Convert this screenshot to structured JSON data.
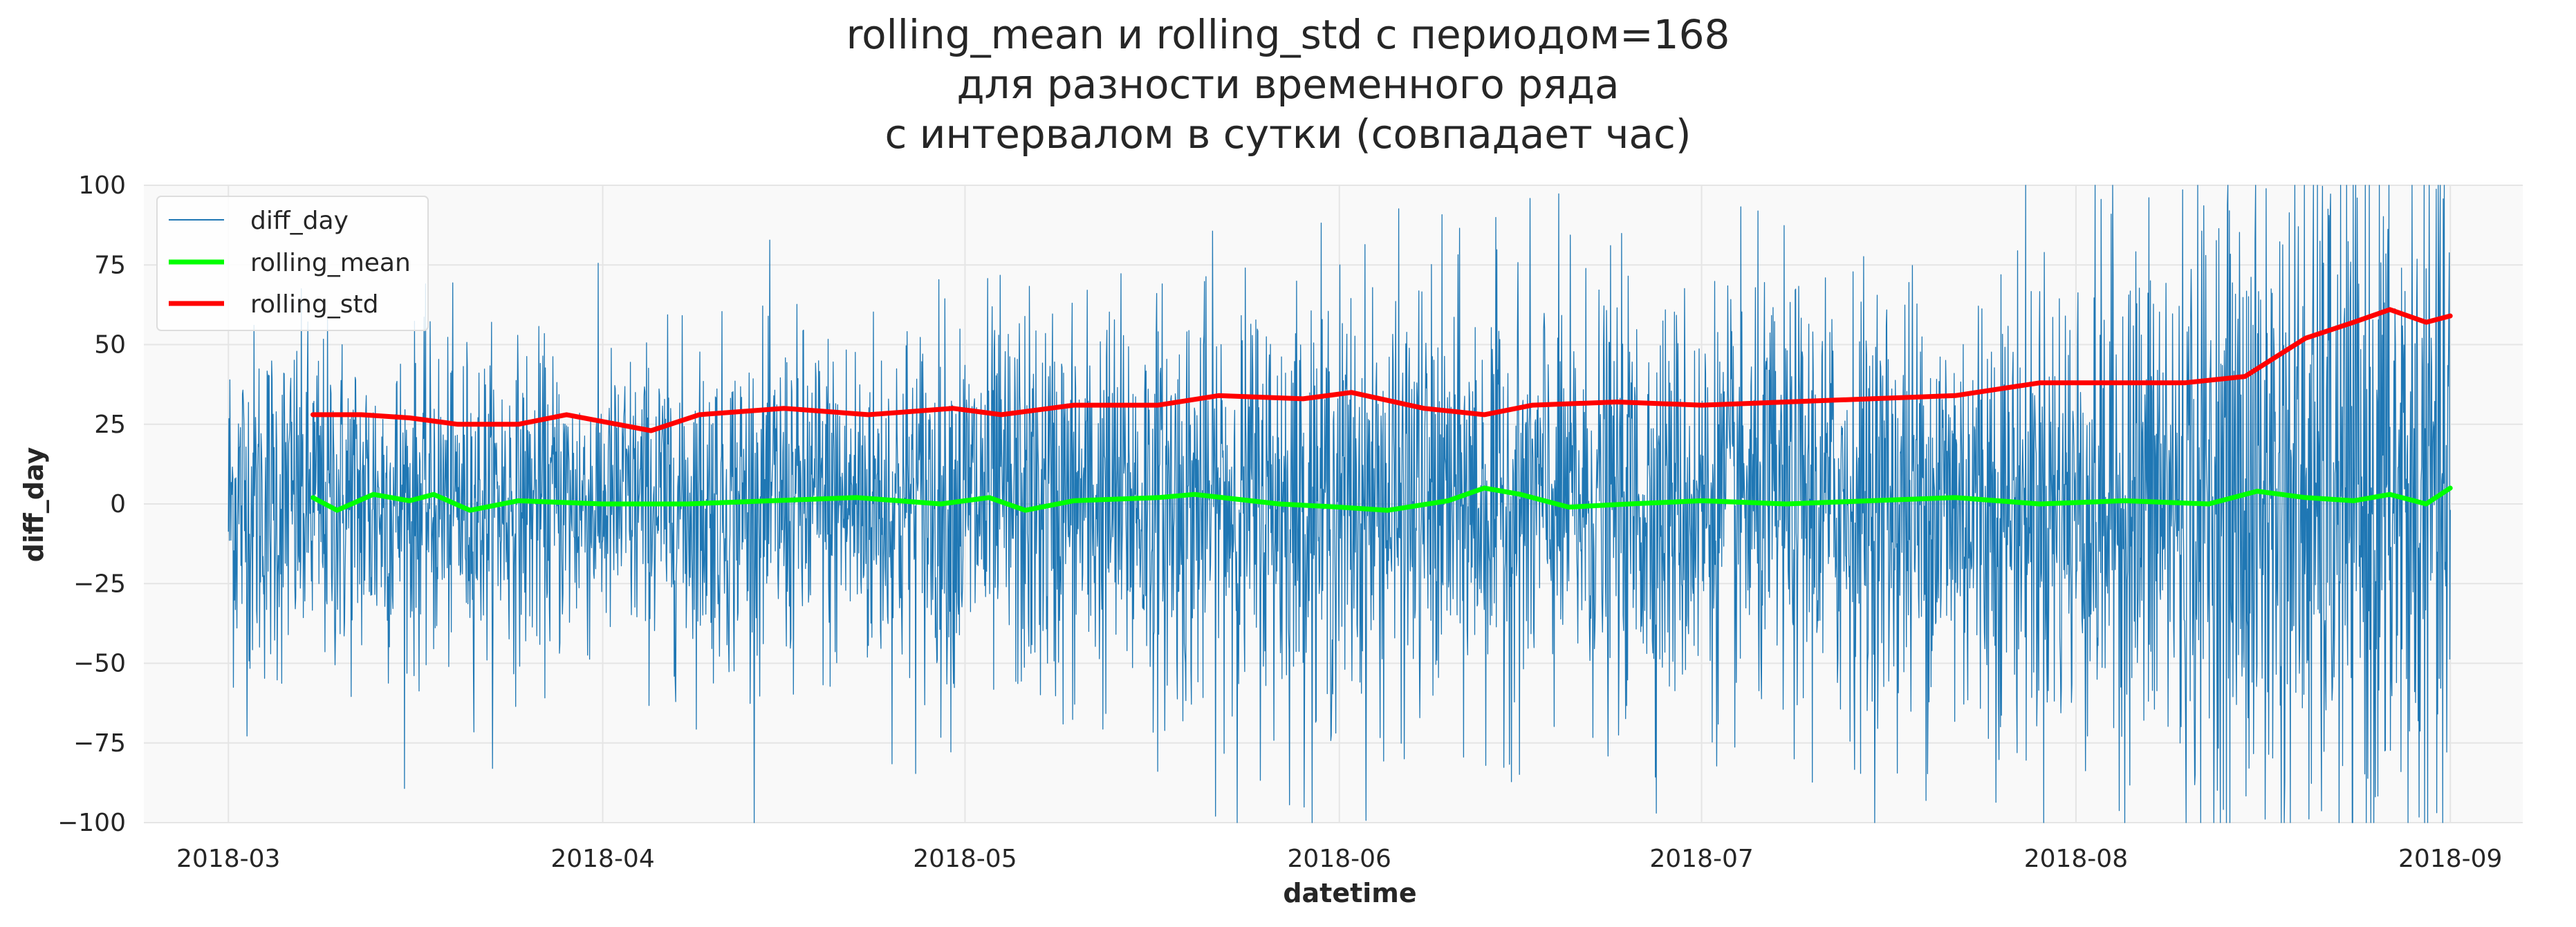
{
  "chart_data": {
    "type": "line",
    "title_lines": [
      "rolling_mean и rolling_std с периодом=168",
      "для разности временного ряда",
      "с интервалом в сутки (совпадает час)"
    ],
    "xlabel": "datetime",
    "ylabel": "diff_day",
    "x_range": [
      "2018-02-22",
      "2018-09-07"
    ],
    "ylim": [
      -100,
      100
    ],
    "x_ticks": [
      "2018-03",
      "2018-04",
      "2018-05",
      "2018-06",
      "2018-07",
      "2018-08",
      "2018-09"
    ],
    "x_tick_dates": [
      "2018-03-01",
      "2018-04-01",
      "2018-05-01",
      "2018-06-01",
      "2018-07-01",
      "2018-08-01",
      "2018-09-01"
    ],
    "y_ticks": [
      100,
      75,
      50,
      25,
      0,
      -25,
      -50,
      -75,
      -100
    ],
    "y_tick_labels": [
      "100",
      "75",
      "50",
      "25",
      "0",
      "−25",
      "−50",
      "−75",
      "−100"
    ],
    "grid": true,
    "legend_position": "top-left",
    "colors": {
      "diff_day": "#1f77b4",
      "rolling_mean": "#00ff00",
      "rolling_std": "#ff0000",
      "plot_background": "#f9f9f9",
      "grid": "#e5e5e5"
    },
    "series": [
      {
        "name": "diff_day",
        "note_hourly": true,
        "start": "2018-03-01",
        "end": "2018-09-01",
        "amplitude_profile": [
          {
            "date": "2018-03-01",
            "std": 28
          },
          {
            "date": "2018-04-01",
            "std": 23
          },
          {
            "date": "2018-05-01",
            "std": 30
          },
          {
            "date": "2018-06-01",
            "std": 34
          },
          {
            "date": "2018-07-01",
            "std": 32
          },
          {
            "date": "2018-08-01",
            "std": 38
          },
          {
            "date": "2018-08-15",
            "std": 52
          },
          {
            "date": "2018-09-01",
            "std": 58
          }
        ]
      },
      {
        "name": "rolling_mean",
        "x": [
          "2018-03-08",
          "2018-03-10",
          "2018-03-13",
          "2018-03-16",
          "2018-03-18",
          "2018-03-21",
          "2018-03-25",
          "2018-04-01",
          "2018-04-08",
          "2018-04-15",
          "2018-04-22",
          "2018-04-29",
          "2018-05-03",
          "2018-05-06",
          "2018-05-10",
          "2018-05-17",
          "2018-05-20",
          "2018-05-27",
          "2018-06-01",
          "2018-06-05",
          "2018-06-10",
          "2018-06-13",
          "2018-06-16",
          "2018-06-20",
          "2018-06-25",
          "2018-07-01",
          "2018-07-08",
          "2018-07-15",
          "2018-07-22",
          "2018-07-29",
          "2018-08-05",
          "2018-08-12",
          "2018-08-16",
          "2018-08-20",
          "2018-08-24",
          "2018-08-27",
          "2018-08-30",
          "2018-09-01"
        ],
        "y": [
          2,
          -2,
          3,
          1,
          3,
          -2,
          1,
          0,
          0,
          1,
          2,
          0,
          2,
          -2,
          1,
          2,
          3,
          0,
          -1,
          -2,
          1,
          5,
          3,
          -1,
          0,
          1,
          0,
          1,
          2,
          0,
          1,
          0,
          4,
          2,
          1,
          3,
          0,
          5
        ]
      },
      {
        "name": "rolling_std",
        "x": [
          "2018-03-08",
          "2018-03-12",
          "2018-03-16",
          "2018-03-20",
          "2018-03-25",
          "2018-03-29",
          "2018-04-05",
          "2018-04-09",
          "2018-04-16",
          "2018-04-23",
          "2018-04-30",
          "2018-05-04",
          "2018-05-10",
          "2018-05-17",
          "2018-05-22",
          "2018-05-29",
          "2018-06-02",
          "2018-06-08",
          "2018-06-13",
          "2018-06-17",
          "2018-06-24",
          "2018-07-01",
          "2018-07-08",
          "2018-07-15",
          "2018-07-22",
          "2018-07-29",
          "2018-08-04",
          "2018-08-10",
          "2018-08-15",
          "2018-08-20",
          "2018-08-24",
          "2018-08-27",
          "2018-08-30",
          "2018-09-01"
        ],
        "y": [
          28,
          28,
          27,
          25,
          25,
          28,
          23,
          28,
          30,
          28,
          30,
          28,
          31,
          31,
          34,
          33,
          35,
          30,
          28,
          31,
          32,
          31,
          32,
          33,
          34,
          38,
          38,
          38,
          40,
          52,
          57,
          61,
          57,
          59
        ]
      }
    ]
  }
}
